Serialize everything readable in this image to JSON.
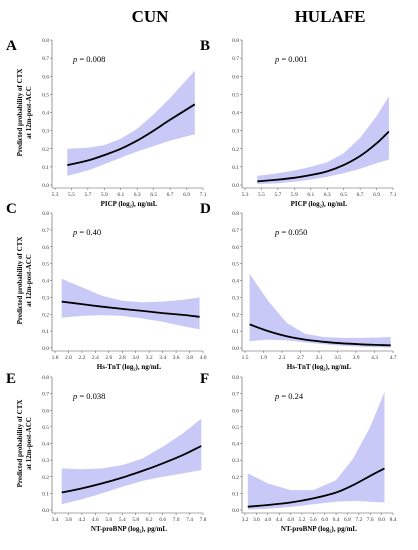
{
  "column_titles": [
    "CUN",
    "HULAFE"
  ],
  "ylabel_lines": [
    "Predicted probability of CTX",
    "at 12m-post-ACC"
  ],
  "colors": {
    "band": "#c9c9f7",
    "line": "#000000",
    "axis": "#555555"
  },
  "chart_data": [
    {
      "letter": "A",
      "type": "line",
      "pvalue": "0.008",
      "xlabel": "PICP (log₂), ng/mL",
      "xlim": [
        5.3,
        7.1
      ],
      "xticks": [
        "5.3",
        "5.5",
        "5.7",
        "5.9",
        "6.1",
        "6.3",
        "6.5",
        "6.7",
        "6.9",
        "7.1"
      ],
      "ylim": [
        0,
        0.8
      ],
      "yticks": [
        "0.0",
        "0.1",
        "0.2",
        "0.3",
        "0.4",
        "0.5",
        "0.6",
        "0.7",
        "0.8"
      ],
      "x": [
        5.45,
        5.7,
        5.9,
        6.1,
        6.3,
        6.5,
        6.7,
        7.0
      ],
      "y": [
        0.11,
        0.135,
        0.165,
        0.2,
        0.245,
        0.3,
        0.36,
        0.445
      ],
      "lower": [
        0.05,
        0.08,
        0.115,
        0.15,
        0.185,
        0.215,
        0.245,
        0.28
      ],
      "upper": [
        0.2,
        0.205,
        0.22,
        0.255,
        0.31,
        0.39,
        0.48,
        0.63
      ]
    },
    {
      "letter": "B",
      "type": "line",
      "pvalue": "0.001",
      "xlabel": "PICP (log₂), ng/mL",
      "xlim": [
        5.3,
        7.1
      ],
      "xticks": [
        "5.3",
        "5.5",
        "5.7",
        "5.9",
        "6.1",
        "6.3",
        "6.5",
        "6.7",
        "6.9",
        "7.1"
      ],
      "ylim": [
        0,
        0.8
      ],
      "yticks": [
        "0.0",
        "0.1",
        "0.2",
        "0.3",
        "0.4",
        "0.5",
        "0.6",
        "0.7",
        "0.8"
      ],
      "x": [
        5.45,
        5.7,
        5.9,
        6.1,
        6.3,
        6.5,
        6.7,
        6.9,
        7.05
      ],
      "y": [
        0.02,
        0.03,
        0.04,
        0.055,
        0.075,
        0.11,
        0.16,
        0.23,
        0.295
      ],
      "lower": [
        0.005,
        0.01,
        0.018,
        0.03,
        0.045,
        0.065,
        0.09,
        0.12,
        0.14
      ],
      "upper": [
        0.05,
        0.065,
        0.08,
        0.1,
        0.125,
        0.175,
        0.26,
        0.38,
        0.49
      ]
    },
    {
      "letter": "C",
      "type": "line",
      "pvalue": "0.40",
      "xlabel": "Hs-TnT  (log₂), ng/mL",
      "xlim": [
        1.8,
        4.0
      ],
      "xticks": [
        "1.8",
        "2.0",
        "2.2",
        "2.4",
        "2.6",
        "2.8",
        "3.0",
        "3.2",
        "3.4",
        "3.6",
        "3.8",
        "4.0"
      ],
      "ylim": [
        0,
        0.8
      ],
      "yticks": [
        "0.0",
        "0.1",
        "0.2",
        "0.3",
        "0.4",
        "0.5",
        "0.6",
        "0.7",
        "0.8"
      ],
      "x": [
        1.9,
        2.2,
        2.5,
        2.8,
        3.1,
        3.4,
        3.7,
        3.95
      ],
      "y": [
        0.275,
        0.26,
        0.245,
        0.232,
        0.22,
        0.207,
        0.196,
        0.185
      ],
      "lower": [
        0.18,
        0.19,
        0.195,
        0.19,
        0.175,
        0.155,
        0.13,
        0.11
      ],
      "upper": [
        0.41,
        0.36,
        0.31,
        0.28,
        0.27,
        0.275,
        0.285,
        0.3
      ]
    },
    {
      "letter": "D",
      "type": "line",
      "pvalue": "0.050",
      "xlabel": "Hs-TnT  (log₂), ng/mL",
      "xlim": [
        1.5,
        4.7
      ],
      "xticks": [
        "1.5",
        "1.9",
        "2.3",
        "2.7",
        "3.1",
        "3.5",
        "3.9",
        "4.3",
        "4.7"
      ],
      "ylim": [
        0,
        0.8
      ],
      "yticks": [
        "0.0",
        "0.1",
        "0.2",
        "0.3",
        "0.4",
        "0.5",
        "0.6",
        "0.7",
        "0.8"
      ],
      "x": [
        1.6,
        2.0,
        2.4,
        2.8,
        3.2,
        3.6,
        4.0,
        4.4,
        4.65
      ],
      "y": [
        0.14,
        0.1,
        0.07,
        0.05,
        0.037,
        0.028,
        0.022,
        0.018,
        0.016
      ],
      "lower": [
        0.04,
        0.05,
        0.045,
        0.033,
        0.022,
        0.013,
        0.007,
        0.004,
        0.003
      ],
      "upper": [
        0.44,
        0.28,
        0.15,
        0.085,
        0.065,
        0.06,
        0.06,
        0.062,
        0.065
      ]
    },
    {
      "letter": "E",
      "type": "line",
      "pvalue": "0.038",
      "xlabel": "NT-proBNP  (log₂), pg/mL",
      "xlim": [
        3.4,
        7.8
      ],
      "xticks": [
        "3.4",
        "3.8",
        "4.2",
        "4.6",
        "5.0",
        "5.4",
        "5.8",
        "6.2",
        "6.6",
        "7.0",
        "7.4",
        "7.8"
      ],
      "ylim": [
        0,
        0.8
      ],
      "yticks": [
        "0.0",
        "0.1",
        "0.2",
        "0.3",
        "0.4",
        "0.5",
        "0.6",
        "0.7",
        "0.8"
      ],
      "x": [
        3.6,
        4.2,
        4.8,
        5.4,
        6.0,
        6.6,
        7.2,
        7.75
      ],
      "y": [
        0.105,
        0.13,
        0.16,
        0.195,
        0.235,
        0.28,
        0.33,
        0.385
      ],
      "lower": [
        0.035,
        0.065,
        0.1,
        0.14,
        0.175,
        0.2,
        0.22,
        0.24
      ],
      "upper": [
        0.25,
        0.245,
        0.25,
        0.27,
        0.31,
        0.38,
        0.46,
        0.55
      ]
    },
    {
      "letter": "F",
      "type": "line",
      "pvalue": "0.24",
      "xlabel": "NT-proBNP  (log₂), pg/mL",
      "xlim": [
        3.2,
        8.4
      ],
      "xticks": [
        "3.2",
        "3.6",
        "4.0",
        "4.4",
        "4.8",
        "5.2",
        "5.6",
        "6.0",
        "6.4",
        "6.8",
        "7.2",
        "7.6",
        "8.0",
        "8.4"
      ],
      "ylim": [
        0,
        0.8
      ],
      "yticks": [
        "0.0",
        "0.1",
        "0.2",
        "0.3",
        "0.4",
        "0.5",
        "0.6",
        "0.7",
        "0.8"
      ],
      "x": [
        3.3,
        4.0,
        4.8,
        5.6,
        6.4,
        7.0,
        7.6,
        8.1
      ],
      "y": [
        0.02,
        0.03,
        0.045,
        0.07,
        0.105,
        0.15,
        0.205,
        0.25
      ],
      "lower": [
        0.003,
        0.008,
        0.018,
        0.035,
        0.05,
        0.055,
        0.05,
        0.045
      ],
      "upper": [
        0.22,
        0.16,
        0.12,
        0.12,
        0.18,
        0.31,
        0.5,
        0.71
      ]
    }
  ]
}
